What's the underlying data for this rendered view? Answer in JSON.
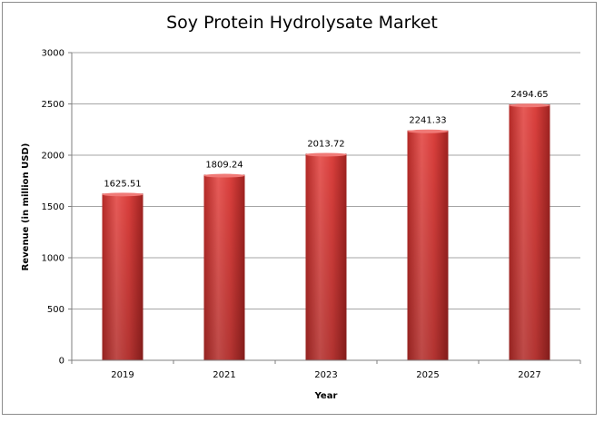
{
  "chart_data": {
    "type": "bar",
    "title": "Soy Protein Hydrolysate Market",
    "xlabel": "Year",
    "ylabel": "Revenue (in million USD)",
    "categories": [
      "2019",
      "2021",
      "2023",
      "2025",
      "2027"
    ],
    "values": [
      1625.51,
      1809.24,
      2013.72,
      2241.33,
      2494.65
    ],
    "data_labels": [
      "1625.51",
      "1809.24",
      "2013.72",
      "2241.33",
      "2494.65"
    ],
    "ylim": [
      0,
      3000
    ],
    "yticks": [
      0,
      500,
      1000,
      1500,
      2000,
      2500,
      3000
    ],
    "grid": true,
    "legend": "none",
    "bar_color": "#d93f3c"
  }
}
